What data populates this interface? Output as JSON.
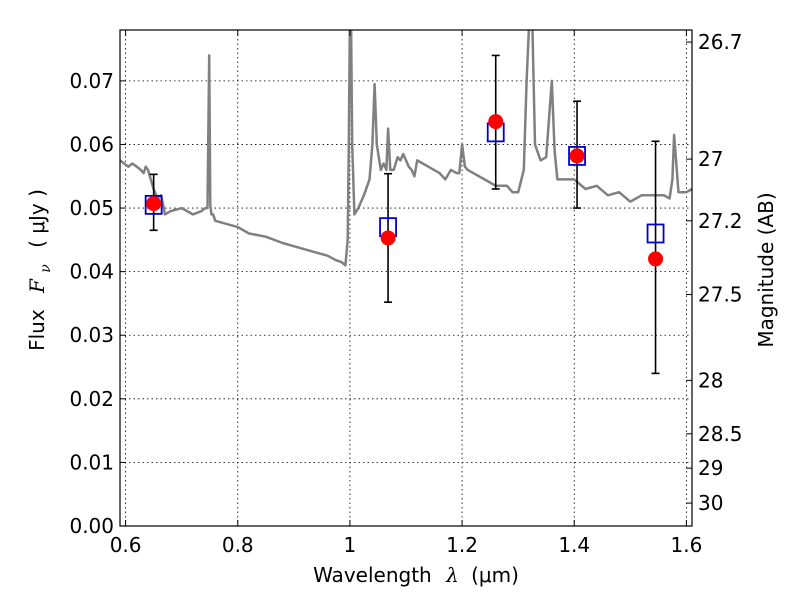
{
  "chart_data": {
    "type": "scatter",
    "title": "",
    "xlabel": "Wavelength",
    "xlabel_symbol": "λ",
    "xlabel_unit": "(μm)",
    "ylabel": "Flux",
    "ylabel_symbol": "F",
    "ylabel_subscript": "ν",
    "ylabel_unit": "( μJy )",
    "y2label": "Magnitude (AB)",
    "xlim": [
      0.59,
      1.61
    ],
    "ylim": [
      0.0,
      0.078
    ],
    "grid": true,
    "x_ticks": [
      {
        "value": 0.6,
        "label": "0.6"
      },
      {
        "value": 0.8,
        "label": "0.8"
      },
      {
        "value": 1.0,
        "label": "1"
      },
      {
        "value": 1.2,
        "label": "1.2"
      },
      {
        "value": 1.4,
        "label": "1.4"
      },
      {
        "value": 1.6,
        "label": "1.6"
      }
    ],
    "y_ticks": [
      {
        "value": 0.0,
        "label": "0.00"
      },
      {
        "value": 0.01,
        "label": "0.01"
      },
      {
        "value": 0.02,
        "label": "0.02"
      },
      {
        "value": 0.03,
        "label": "0.03"
      },
      {
        "value": 0.04,
        "label": "0.04"
      },
      {
        "value": 0.05,
        "label": "0.05"
      },
      {
        "value": 0.06,
        "label": "0.06"
      },
      {
        "value": 0.07,
        "label": "0.07"
      }
    ],
    "y2_ticks": [
      {
        "label": "26.7",
        "flux": 0.0761
      },
      {
        "label": "27",
        "flux": 0.0577
      },
      {
        "label": "27.2",
        "flux": 0.048
      },
      {
        "label": "27.5",
        "flux": 0.0364
      },
      {
        "label": "28",
        "flux": 0.0229
      },
      {
        "label": "28.5",
        "flux": 0.0145
      },
      {
        "label": "29",
        "flux": 0.0091
      },
      {
        "label": "30",
        "flux": 0.0036
      }
    ],
    "series": [
      {
        "kind": "line",
        "color": "#808080",
        "x": [
          0.59,
          0.605,
          0.612,
          0.62,
          0.627,
          0.632,
          0.636,
          0.64,
          0.645,
          0.65,
          0.657,
          0.663,
          0.667,
          0.67,
          0.68,
          0.7,
          0.72,
          0.735,
          0.742,
          0.746,
          0.749,
          0.751,
          0.753,
          0.756,
          0.76,
          0.78,
          0.8,
          0.82,
          0.85,
          0.88,
          0.9,
          0.92,
          0.94,
          0.96,
          0.975,
          0.985,
          0.992,
          0.996,
          0.998,
          1.0,
          1.002,
          1.004,
          1.008,
          1.015,
          1.025,
          1.035,
          1.04,
          1.044,
          1.048,
          1.055,
          1.06,
          1.065,
          1.068,
          1.072,
          1.078,
          1.085,
          1.09,
          1.095,
          1.1,
          1.105,
          1.11,
          1.115,
          1.12,
          1.13,
          1.14,
          1.15,
          1.16,
          1.17,
          1.18,
          1.19,
          1.195,
          1.2,
          1.205,
          1.21,
          1.22,
          1.24,
          1.26,
          1.28,
          1.29,
          1.3,
          1.31,
          1.315,
          1.32,
          1.325,
          1.33,
          1.34,
          1.35,
          1.355,
          1.36,
          1.365,
          1.37,
          1.38,
          1.4,
          1.42,
          1.44,
          1.46,
          1.48,
          1.5,
          1.52,
          1.54,
          1.56,
          1.57,
          1.575,
          1.578,
          1.582,
          1.586,
          1.59,
          1.6,
          1.61
        ],
        "y": [
          0.0575,
          0.0565,
          0.057,
          0.0565,
          0.056,
          0.0555,
          0.0565,
          0.056,
          0.0545,
          0.053,
          0.0515,
          0.052,
          0.0505,
          0.049,
          0.0495,
          0.05,
          0.049,
          0.0495,
          0.05,
          0.05,
          0.074,
          0.0505,
          0.049,
          0.049,
          0.048,
          0.0475,
          0.047,
          0.046,
          0.0455,
          0.0445,
          0.044,
          0.0435,
          0.043,
          0.0425,
          0.0418,
          0.0415,
          0.041,
          0.045,
          0.06,
          0.08,
          0.08,
          0.06,
          0.049,
          0.05,
          0.052,
          0.0545,
          0.06,
          0.0695,
          0.06,
          0.056,
          0.057,
          0.056,
          0.0625,
          0.056,
          0.056,
          0.058,
          0.0575,
          0.0585,
          0.0575,
          0.0565,
          0.056,
          0.055,
          0.0575,
          0.057,
          0.0565,
          0.056,
          0.0555,
          0.0545,
          0.056,
          0.0555,
          0.0555,
          0.06,
          0.0565,
          0.056,
          0.0555,
          0.0545,
          0.0535,
          0.0535,
          0.0525,
          0.0525,
          0.056,
          0.07,
          0.08,
          0.08,
          0.06,
          0.0575,
          0.058,
          0.064,
          0.07,
          0.059,
          0.0545,
          0.0545,
          0.0545,
          0.053,
          0.0535,
          0.052,
          0.0525,
          0.051,
          0.052,
          0.052,
          0.052,
          0.0515,
          0.0545,
          0.0615,
          0.057,
          0.0525,
          0.0525,
          0.0525,
          0.053
        ]
      },
      {
        "kind": "errorbar",
        "color": "#000000",
        "points": [
          {
            "x": 0.65,
            "lo": 0.0465,
            "hi": 0.0553
          },
          {
            "x": 1.068,
            "lo": 0.0352,
            "hi": 0.0554
          },
          {
            "x": 1.26,
            "lo": 0.053,
            "hi": 0.074
          },
          {
            "x": 1.405,
            "lo": 0.05,
            "hi": 0.0668
          },
          {
            "x": 1.545,
            "lo": 0.024,
            "hi": 0.0605
          }
        ]
      },
      {
        "kind": "markers-square",
        "color": "#0000cc",
        "x": [
          0.65,
          1.068,
          1.26,
          1.405,
          1.545
        ],
        "y": [
          0.0505,
          0.047,
          0.0619,
          0.0582,
          0.046
        ]
      },
      {
        "kind": "markers-circle",
        "color": "#ff0000",
        "x": [
          0.65,
          1.068,
          1.26,
          1.405,
          1.545
        ],
        "y": [
          0.0507,
          0.0453,
          0.0636,
          0.0582,
          0.042
        ]
      }
    ]
  }
}
